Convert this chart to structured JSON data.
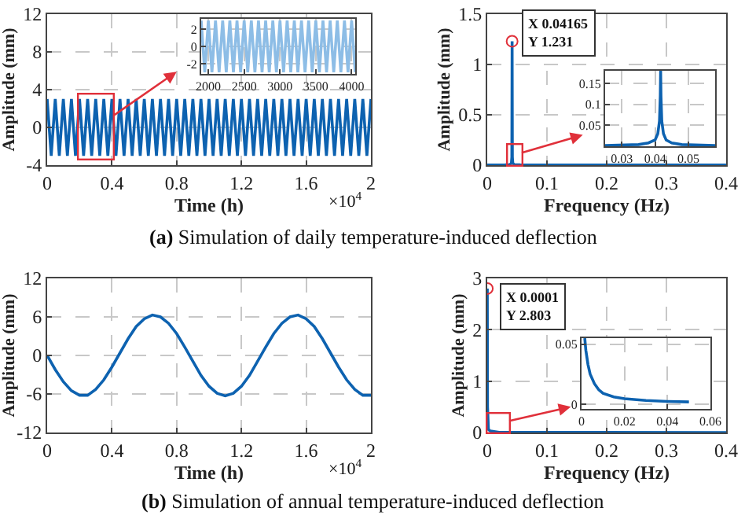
{
  "chart_data": [
    {
      "type": "line",
      "xlabel": "Time (h)",
      "ylabel": "Amplitude (mm)",
      "xlim": [
        0,
        2
      ],
      "xticks": [
        0,
        0.4,
        0.8,
        1.2,
        1.6,
        2
      ],
      "ylim": [
        -4,
        12
      ],
      "yticks": [
        -4,
        0,
        4,
        8,
        12
      ],
      "grid": true,
      "series": [
        {
          "color": "#0d62b0",
          "x": [
            0,
            0.025,
            0.05,
            0.075,
            0.1,
            0.125,
            0.15,
            0.175,
            0.2,
            0.225,
            0.25,
            0.275,
            0.3,
            0.325,
            0.35,
            0.375,
            0.4,
            0.425,
            0.45,
            0.475,
            0.5,
            0.525,
            0.55,
            0.575,
            0.6,
            0.625,
            0.65,
            0.675,
            0.7,
            0.725,
            0.75,
            0.775,
            0.8,
            0.825,
            0.85,
            0.875,
            0.9,
            0.925,
            0.95,
            0.975,
            1,
            1.025,
            1.05,
            1.075,
            1.1,
            1.125,
            1.15,
            1.175,
            1.2,
            1.225,
            1.25,
            1.275,
            1.3,
            1.325,
            1.35,
            1.375,
            1.4,
            1.425,
            1.45,
            1.475,
            1.5,
            1.525,
            1.55,
            1.575,
            1.6,
            1.625,
            1.65,
            1.675,
            1.7,
            1.725,
            1.75,
            1.775,
            1.8,
            1.825,
            1.85,
            1.875,
            1.9,
            1.925,
            1.95,
            1.975,
            2
          ],
          "values": [
            3,
            -3,
            3,
            -3,
            3,
            -3,
            3,
            -3,
            3,
            -3,
            3,
            -3,
            3,
            -3,
            3,
            -3,
            3,
            -3,
            3,
            -3,
            3,
            -3,
            3,
            -3,
            3,
            -3,
            3,
            -3,
            3,
            -3,
            3,
            -3,
            3,
            -3,
            3,
            -3,
            3,
            -3,
            3,
            -3,
            3,
            -3,
            3,
            -3,
            3,
            -3,
            3,
            -3,
            3,
            -3,
            3,
            -3,
            3,
            -3,
            3,
            -3,
            3,
            -3,
            3,
            -3,
            3,
            -3,
            3,
            -3,
            3,
            -3,
            3,
            -3,
            3,
            -3,
            3,
            -3,
            3,
            -3,
            3,
            -3,
            3,
            -3,
            3,
            -3,
            3
          ]
        }
      ],
      "annotations": [
        "×10$^{4}$",
        "(a) Simulation of daily temperature-induced deflection"
      ]
    },
    {
      "type": "line",
      "xlim": [
        1900,
        4050
      ],
      "xticks": [
        2000,
        2500,
        3000,
        3500,
        4000
      ],
      "ylim": [
        -3.2,
        3.2
      ],
      "yticks": [
        -2,
        0,
        2
      ],
      "grid": true,
      "series": [
        {
          "color": "#8dbde6",
          "x": [
            1900,
            1950,
            2000,
            2050,
            2100,
            2150,
            2200,
            2250,
            2300,
            2350,
            2400,
            2450,
            2500,
            2550,
            2600,
            2650,
            2700,
            2750,
            2800,
            2850,
            2900,
            2950,
            3000,
            3050,
            3100,
            3150,
            3200,
            3250,
            3300,
            3350,
            3400,
            3450,
            3500,
            3550,
            3600,
            3650,
            3700,
            3750,
            3800,
            3850,
            3900,
            3950,
            4000,
            4050
          ],
          "values": [
            3,
            -3,
            3,
            -3,
            3,
            -3,
            3,
            -3,
            3,
            -3,
            3,
            -3,
            3,
            -3,
            3,
            -3,
            3,
            -3,
            3,
            -3,
            3,
            -3,
            3,
            -3,
            3,
            -3,
            3,
            -3,
            3,
            -3,
            3,
            -3,
            3,
            -3,
            3,
            -3,
            3,
            -3,
            3,
            -3,
            3,
            -3,
            3,
            -3
          ]
        }
      ]
    },
    {
      "type": "line",
      "xlabel": "Frequency (Hz)",
      "ylabel": "Amplitude (mm)",
      "xlim": [
        0,
        0.4
      ],
      "xticks": [
        0,
        0.1,
        0.2,
        0.3,
        0.4
      ],
      "ylim": [
        0,
        1.5
      ],
      "yticks": [
        0,
        0.5,
        1,
        1.5
      ],
      "grid": true,
      "series": [
        {
          "color": "#0d62b0",
          "x": [
            0,
            0.03,
            0.038,
            0.0405,
            0.0412,
            0.04165,
            0.0421,
            0.0428,
            0.045,
            0.055,
            0.4
          ],
          "values": [
            0.002,
            0.003,
            0.006,
            0.02,
            0.08,
            1.231,
            0.08,
            0.02,
            0.006,
            0.003,
            0.001
          ]
        },
        {
          "type": "scatter",
          "color": "#e0303a",
          "x": [
            0.04165
          ],
          "values": [
            1.231
          ]
        }
      ],
      "annotations": [
        "X 0.04165\nY 1.231"
      ]
    },
    {
      "type": "line",
      "xlim": [
        0.025,
        0.058
      ],
      "xticks": [
        0.03,
        0.04,
        0.05
      ],
      "ylim": [
        0,
        0.18
      ],
      "yticks": [
        0.05,
        0.1,
        0.15
      ],
      "grid": true,
      "series": [
        {
          "color": "#0d62b0",
          "x": [
            0.025,
            0.035,
            0.038,
            0.04,
            0.0408,
            0.0413,
            0.04155,
            0.04165,
            0.04175,
            0.042,
            0.0425,
            0.0433,
            0.045,
            0.048,
            0.058
          ],
          "values": [
            0.002,
            0.004,
            0.008,
            0.015,
            0.03,
            0.06,
            0.12,
            0.18,
            0.12,
            0.06,
            0.03,
            0.015,
            0.008,
            0.004,
            0.002
          ]
        }
      ]
    },
    {
      "type": "line",
      "xlabel": "Time (h)",
      "ylabel": "Amplitude (mm)",
      "xlim": [
        0,
        2
      ],
      "xticks": [
        0,
        0.4,
        0.8,
        1.2,
        1.6,
        2
      ],
      "ylim": [
        -12,
        12
      ],
      "yticks": [
        -12,
        -6,
        0,
        6,
        12
      ],
      "grid": true,
      "series": [
        {
          "color": "#0d62b0",
          "x": [
            0,
            0.05,
            0.1,
            0.15,
            0.2,
            0.25,
            0.3,
            0.35,
            0.4,
            0.45,
            0.5,
            0.55,
            0.6,
            0.65,
            0.7,
            0.75,
            0.8,
            0.85,
            0.9,
            0.95,
            1,
            1.05,
            1.1,
            1.15,
            1.2,
            1.25,
            1.3,
            1.35,
            1.4,
            1.45,
            1.5,
            1.55,
            1.6,
            1.65,
            1.7,
            1.75,
            1.8,
            1.85,
            1.9,
            1.95,
            2
          ],
          "values": [
            0,
            -2.2,
            -4.1,
            -5.5,
            -6.2,
            -6.2,
            -5.3,
            -3.8,
            -1.8,
            0.4,
            2.6,
            4.5,
            5.7,
            6.3,
            6,
            5,
            3.4,
            1.3,
            -0.9,
            -3.1,
            -4.8,
            -5.9,
            -6.3,
            -5.9,
            -4.8,
            -3.1,
            -0.9,
            1.3,
            3.4,
            5,
            6,
            6.3,
            5.7,
            4.5,
            2.6,
            0.4,
            -1.8,
            -3.8,
            -5.3,
            -6.2,
            -6.2
          ]
        }
      ],
      "annotations": [
        "×10$^{4}$",
        "(b) Simulation of annual temperature-induced deflection"
      ]
    },
    {
      "type": "line",
      "xlabel": "Frequency (Hz)",
      "ylabel": "Amplitude (mm)",
      "xlim": [
        0,
        0.4
      ],
      "xticks": [
        0,
        0.1,
        0.2,
        0.3,
        0.4
      ],
      "ylim": [
        0,
        3
      ],
      "yticks": [
        0,
        1,
        2,
        3
      ],
      "grid": true,
      "series": [
        {
          "color": "#0d62b0",
          "x": [
            0.0001,
            0.0005,
            0.002,
            0.005,
            0.02,
            0.05,
            0.4
          ],
          "values": [
            2.803,
            0.5,
            0.06,
            0.03,
            0.005,
            0.002,
            0.001
          ]
        },
        {
          "type": "scatter",
          "color": "#e0303a",
          "x": [
            0.0001
          ],
          "values": [
            2.803
          ]
        }
      ],
      "annotations": [
        "X 0.0001\nY 2.803"
      ]
    },
    {
      "type": "line",
      "xlim": [
        0,
        0.06
      ],
      "xticks": [
        0,
        0.02,
        0.04,
        0.06
      ],
      "ylim": [
        -0.004,
        0.055
      ],
      "yticks": [
        0,
        0.05
      ],
      "grid": true,
      "series": [
        {
          "color": "#0d62b0",
          "x": [
            0.0015,
            0.002,
            0.003,
            0.004,
            0.006,
            0.008,
            0.01,
            0.015,
            0.02,
            0.03,
            0.04,
            0.05
          ],
          "values": [
            0.055,
            0.045,
            0.033,
            0.025,
            0.017,
            0.012,
            0.009,
            0.006,
            0.0045,
            0.003,
            0.0022,
            0.0018
          ]
        }
      ]
    }
  ]
}
